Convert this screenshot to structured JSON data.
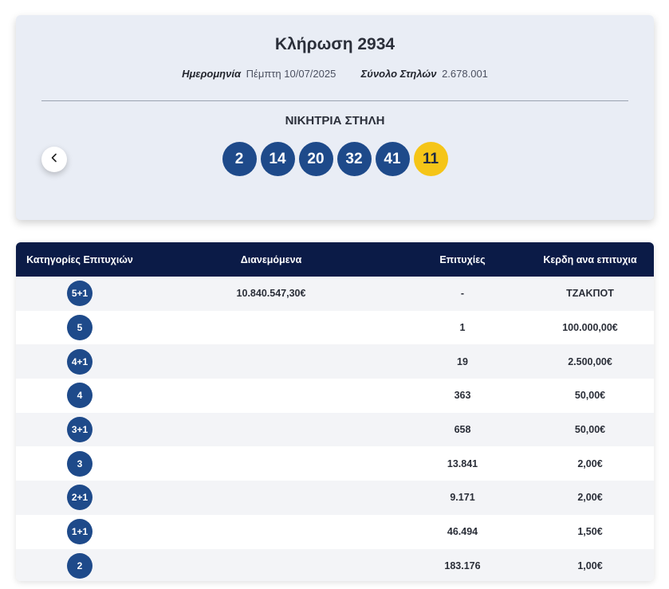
{
  "draw": {
    "title": "Κλήρωση 2934",
    "date_label": "Ημερομηνία",
    "date_value": "Πέμπτη 10/07/2025",
    "total_label": "Σύνολο Στηλών",
    "total_value": "2.678.001",
    "winning_label": "ΝΙΚΗΤΡΙΑ ΣΤΗΛΗ",
    "numbers": [
      "2",
      "14",
      "20",
      "32",
      "41"
    ],
    "bonus": "11",
    "prev_icon": "chevron-left-icon"
  },
  "table": {
    "headers": {
      "category": "Κατηγορίες Επιτυχιών",
      "distributed": "Διανεμόμενα",
      "winners": "Επιτυχίες",
      "prize": "Κερδη ανα επιτυχια"
    },
    "rows": [
      {
        "category": "5+1",
        "distributed": "10.840.547,30€",
        "winners": "-",
        "prize": "ΤΖΑΚΠΟΤ"
      },
      {
        "category": "5",
        "distributed": "",
        "winners": "1",
        "prize": "100.000,00€"
      },
      {
        "category": "4+1",
        "distributed": "",
        "winners": "19",
        "prize": "2.500,00€"
      },
      {
        "category": "4",
        "distributed": "",
        "winners": "363",
        "prize": "50,00€"
      },
      {
        "category": "3+1",
        "distributed": "",
        "winners": "658",
        "prize": "50,00€"
      },
      {
        "category": "3",
        "distributed": "",
        "winners": "13.841",
        "prize": "2,00€"
      },
      {
        "category": "2+1",
        "distributed": "",
        "winners": "9.171",
        "prize": "2,00€"
      },
      {
        "category": "1+1",
        "distributed": "",
        "winners": "46.494",
        "prize": "1,50€"
      },
      {
        "category": "2",
        "distributed": "",
        "winners": "183.176",
        "prize": "1,00€"
      }
    ]
  },
  "colors": {
    "ball": "#1e4a8a",
    "bonus_ball": "#f5c518",
    "header_bg": "#0b1b47",
    "card_bg": "#e9edf5"
  }
}
